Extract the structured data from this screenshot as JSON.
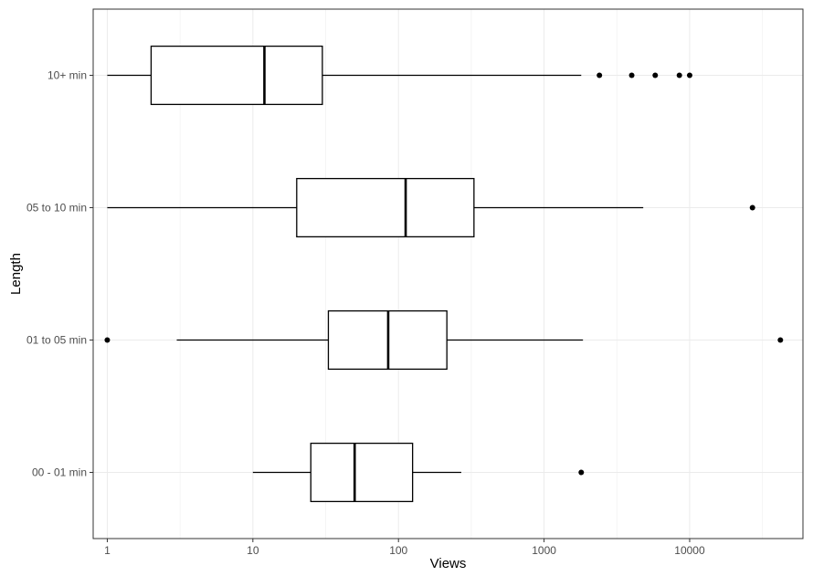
{
  "chart_data": {
    "type": "boxplot",
    "orientation": "horizontal",
    "title": "",
    "xlabel": "Views",
    "ylabel": "Length",
    "x_scale": "log10",
    "xlim": [
      0.8,
      60000
    ],
    "x_ticks": [
      1,
      10,
      100,
      1000,
      10000
    ],
    "x_tick_labels": [
      "1",
      "10",
      "100",
      "1000",
      "10000"
    ],
    "grid": true,
    "categories": [
      "00 - 01 min",
      "01 to 05 min",
      "05 to 10 min",
      "10+ min"
    ],
    "boxes": [
      {
        "category": "00 - 01 min",
        "whisker_low": 10,
        "q1": 25,
        "median": 50,
        "q3": 125,
        "whisker_high": 270,
        "outliers": [
          1800
        ]
      },
      {
        "category": "01 to 05 min",
        "whisker_low": 3,
        "q1": 33,
        "median": 85,
        "q3": 215,
        "whisker_high": 1850,
        "outliers": [
          1,
          42000
        ]
      },
      {
        "category": "05 to 10 min",
        "whisker_low": 1,
        "q1": 20,
        "median": 112,
        "q3": 330,
        "whisker_high": 4800,
        "outliers": [
          27000
        ]
      },
      {
        "category": "10+ min",
        "whisker_low": 1,
        "q1": 2,
        "median": 12,
        "q3": 30,
        "whisker_high": 1800,
        "outliers": [
          2400,
          4000,
          5800,
          8500,
          10000
        ]
      }
    ],
    "colors": {
      "box_fill": "#ffffff",
      "stroke": "#000000",
      "grid": "#ebebeb",
      "panel_border": "#333333"
    }
  }
}
